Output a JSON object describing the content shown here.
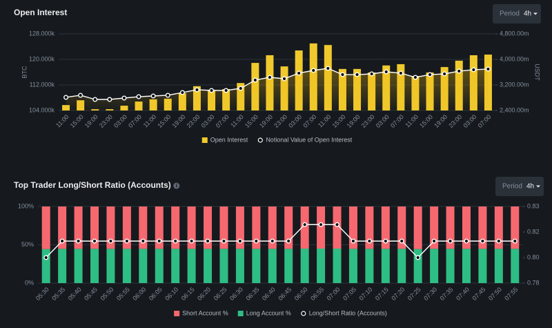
{
  "chart_data": [
    {
      "type": "bar",
      "title": "Open Interest",
      "period_label": "Period",
      "period_value": "4h",
      "ylabel": "BTC",
      "y2label": "USDT",
      "categories": [
        "11:00",
        "15:00",
        "19:00",
        "23:00",
        "03:00",
        "07:00",
        "11:00",
        "15:00",
        "19:00",
        "23:00",
        "03:00",
        "07:00",
        "11:00",
        "15:00",
        "19:00",
        "23:00",
        "03:00",
        "07:00",
        "11:00",
        "15:00",
        "19:00",
        "23:00",
        "03:00",
        "07:00",
        "11:00",
        "15:00",
        "19:00",
        "23:00",
        "03:00",
        "07:00"
      ],
      "series": [
        {
          "name": "Open Interest",
          "type": "bar",
          "color": "#f0c92d",
          "values": [
            105700,
            107200,
            104400,
            104400,
            105500,
            106800,
            107500,
            107700,
            109400,
            111600,
            110500,
            110700,
            112600,
            118900,
            121300,
            117800,
            122800,
            125000,
            124500,
            117000,
            117000,
            115900,
            118100,
            118500,
            114800,
            115900,
            117600,
            119600,
            121300,
            121500
          ]
        },
        {
          "name": "Notional Value of Open Interest",
          "type": "line",
          "axis": "y2",
          "color": "#ffffff",
          "values": [
            2811000000,
            2876000000,
            2746000000,
            2746000000,
            2789000000,
            2832000000,
            2854000000,
            2876000000,
            2962000000,
            3049000000,
            3027000000,
            3027000000,
            3092000000,
            3351000000,
            3438000000,
            3395000000,
            3568000000,
            3654000000,
            3719000000,
            3524000000,
            3524000000,
            3546000000,
            3611000000,
            3568000000,
            3438000000,
            3524000000,
            3546000000,
            3632000000,
            3676000000,
            3697000000
          ]
        }
      ],
      "ylim": [
        104000,
        128000
      ],
      "yticks": [
        {
          "value": 104000,
          "label": "104.000k"
        },
        {
          "value": 112000,
          "label": "112.000k"
        },
        {
          "value": 120000,
          "label": "120.000k"
        },
        {
          "value": 128000,
          "label": "128.000k"
        }
      ],
      "y2lim": [
        2400000000,
        4800000000
      ],
      "y2ticks": [
        {
          "value": 2400000000,
          "label": "2,400.00m"
        },
        {
          "value": 3200000000,
          "label": "3,200.00m"
        },
        {
          "value": 4000000000,
          "label": "4,000.00m"
        },
        {
          "value": 4800000000,
          "label": "4,800.00m"
        }
      ],
      "grid": true,
      "stacked": false,
      "area": true,
      "legend": "bottom"
    },
    {
      "type": "bar",
      "title": "Top Trader Long/Short Ratio (Accounts)",
      "period_label": "Period",
      "period_value": "4h",
      "categories": [
        "05:30",
        "05:35",
        "05:40",
        "05:45",
        "05:50",
        "05:55",
        "06:00",
        "06:05",
        "06:10",
        "06:15",
        "06:20",
        "06:25",
        "06:30",
        "06:35",
        "06:40",
        "06:45",
        "06:50",
        "06:55",
        "07:00",
        "07:05",
        "07:10",
        "07:15",
        "07:20",
        "07:25",
        "07:30",
        "07:35",
        "07:40",
        "07:45",
        "07:50",
        "07:55"
      ],
      "series": [
        {
          "name": "Short Account %",
          "type": "bar",
          "color": "#f6686f",
          "values": [
            55.56,
            55.25,
            55.25,
            55.25,
            55.25,
            55.25,
            55.25,
            55.25,
            55.25,
            55.25,
            55.25,
            55.25,
            55.25,
            55.25,
            55.25,
            55.25,
            54.95,
            54.95,
            54.95,
            55.25,
            55.25,
            55.25,
            55.25,
            55.56,
            55.25,
            55.25,
            55.25,
            55.25,
            55.25,
            55.25
          ]
        },
        {
          "name": "Long Account %",
          "type": "bar",
          "color": "#2ebd85",
          "values": [
            44.44,
            44.75,
            44.75,
            44.75,
            44.75,
            44.75,
            44.75,
            44.75,
            44.75,
            44.75,
            44.75,
            44.75,
            44.75,
            44.75,
            44.75,
            44.75,
            45.05,
            45.05,
            45.05,
            44.75,
            44.75,
            44.75,
            44.75,
            44.44,
            44.75,
            44.75,
            44.75,
            44.75,
            44.75,
            44.75
          ]
        },
        {
          "name": "Long/Short Ratio (Accounts)",
          "type": "line",
          "axis": "y2",
          "color": "#ffffff",
          "values": [
            0.8,
            0.81,
            0.81,
            0.81,
            0.81,
            0.81,
            0.81,
            0.81,
            0.81,
            0.81,
            0.81,
            0.81,
            0.81,
            0.81,
            0.81,
            0.81,
            0.82,
            0.82,
            0.82,
            0.81,
            0.81,
            0.81,
            0.81,
            0.8,
            0.81,
            0.81,
            0.81,
            0.81,
            0.81,
            0.81
          ]
        }
      ],
      "ylim": [
        0,
        100
      ],
      "yticks": [
        {
          "value": 0,
          "label": "0%"
        },
        {
          "value": 50,
          "label": "50%"
        },
        {
          "value": 100,
          "label": "100%"
        }
      ],
      "y2lim": [
        0.7845,
        0.831
      ],
      "y2ticks": [
        {
          "value": 0.7845,
          "label": "0.78"
        },
        {
          "value": 0.8,
          "label": "0.80"
        },
        {
          "value": 0.8155,
          "label": "0.82"
        },
        {
          "value": 0.831,
          "label": "0.83"
        }
      ],
      "grid": true,
      "stacked": true,
      "area": false,
      "legend": "bottom"
    }
  ]
}
